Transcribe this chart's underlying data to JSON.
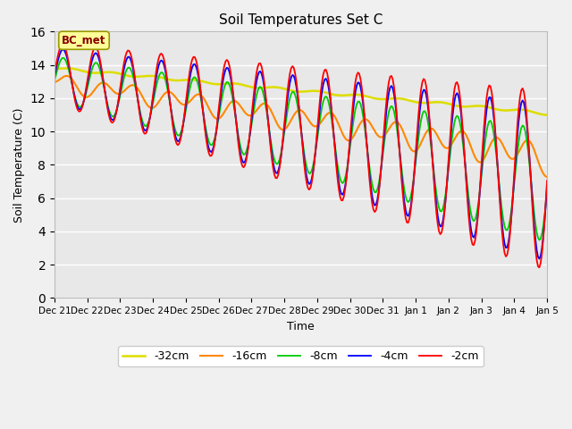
{
  "title": "Soil Temperatures Set C",
  "xlabel": "Time",
  "ylabel": "Soil Temperature (C)",
  "ylim": [
    0,
    16
  ],
  "annotation": "BC_met",
  "legend_labels": [
    "-2cm",
    "-4cm",
    "-8cm",
    "-16cm",
    "-32cm"
  ],
  "line_colors": [
    "#ff0000",
    "#0000ff",
    "#00cc00",
    "#ff8800",
    "#dddd00"
  ],
  "x_tick_labels": [
    "Dec 21",
    "Dec 22",
    "Dec 23",
    "Dec 24",
    "Dec 25",
    "Dec 26",
    "Dec 27",
    "Dec 28",
    "Dec 29",
    "Dec 30",
    "Dec 31",
    "Jan 1",
    "Jan 2",
    "Jan 3",
    "Jan 4",
    "Jan 5"
  ],
  "background_color": "#e8e8e8",
  "grid_color": "#ffffff",
  "annotation_bg": "#ffff99",
  "annotation_border": "#999900",
  "annotation_text_color": "#880000",
  "fig_bg": "#f0f0f0"
}
